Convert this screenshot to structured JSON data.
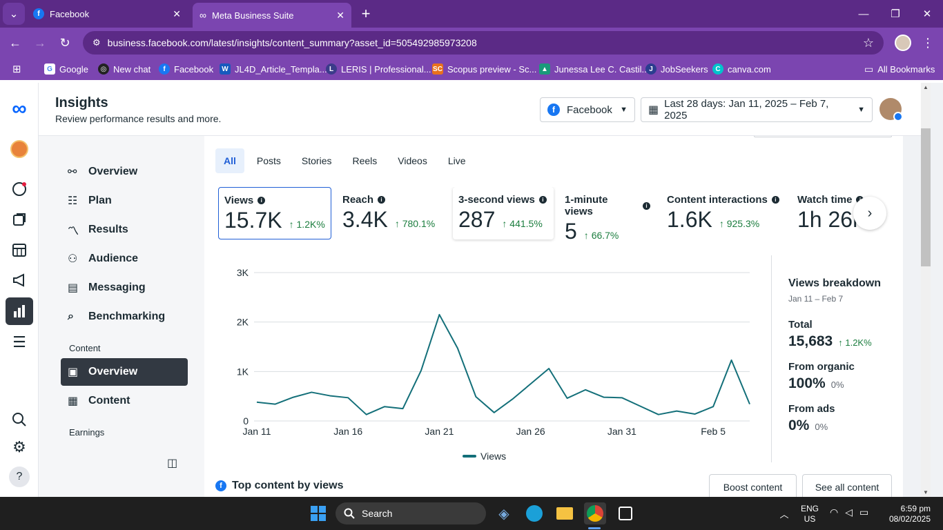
{
  "browser": {
    "tabs": [
      {
        "title": "Facebook",
        "icon": "facebook-icon"
      },
      {
        "title": "Meta Business Suite",
        "icon": "meta-icon"
      }
    ],
    "url": "business.facebook.com/latest/insights/content_summary?asset_id=505492985973208",
    "bookmarks": [
      {
        "label": "Google",
        "icon": "google-icon"
      },
      {
        "label": "New chat",
        "icon": "chatgpt-icon"
      },
      {
        "label": "Facebook",
        "icon": "facebook-icon"
      },
      {
        "label": "JL4D_Article_Templa...",
        "icon": "word-icon"
      },
      {
        "label": "LERIS | Professional...",
        "icon": "leris-icon"
      },
      {
        "label": "Scopus preview - Sc...",
        "icon": "scopus-icon"
      },
      {
        "label": "Junessa Lee C. Castil...",
        "icon": "bookmark-icon"
      },
      {
        "label": "JobSeekers",
        "icon": "jobseekers-icon"
      },
      {
        "label": "canva.com",
        "icon": "canva-icon"
      }
    ],
    "all_bookmarks": "All Bookmarks"
  },
  "header": {
    "title": "Insights",
    "subtitle": "Review performance results and more.",
    "platform": "Facebook",
    "date_range": "Last 28 days: Jan 11, 2025 – Feb 7, 2025"
  },
  "sidebar": {
    "items": [
      {
        "label": "Overview",
        "icon": "overview-icon"
      },
      {
        "label": "Plan",
        "icon": "plan-icon"
      },
      {
        "label": "Results",
        "icon": "results-icon"
      },
      {
        "label": "Audience",
        "icon": "audience-icon"
      },
      {
        "label": "Messaging",
        "icon": "messaging-icon"
      },
      {
        "label": "Benchmarking",
        "icon": "benchmarking-icon"
      }
    ],
    "content_section": "Content",
    "content_items": [
      {
        "label": "Overview",
        "icon": "content-overview-icon"
      },
      {
        "label": "Content",
        "icon": "table-icon"
      }
    ],
    "earnings_section": "Earnings"
  },
  "filter_tabs": [
    "All",
    "Posts",
    "Stories",
    "Reels",
    "Videos",
    "Live"
  ],
  "metrics": [
    {
      "label": "Views",
      "value": "15.7K",
      "change": "1.2K%"
    },
    {
      "label": "Reach",
      "value": "3.4K",
      "change": "780.1%"
    },
    {
      "label": "3-second views",
      "value": "287",
      "change": "441.5%"
    },
    {
      "label": "1-minute views",
      "value": "5",
      "change": "66.7%"
    },
    {
      "label": "Content interactions",
      "value": "1.6K",
      "change": "925.3%"
    },
    {
      "label": "Watch time",
      "value": "1h 26m",
      "change": ""
    }
  ],
  "chart_data": {
    "type": "line",
    "x_ticks": [
      "Jan 11",
      "Jan 16",
      "Jan 21",
      "Jan 26",
      "Jan 31",
      "Feb 5"
    ],
    "y_ticks": [
      "0",
      "1K",
      "2K",
      "3K"
    ],
    "ylim": [
      0,
      3000
    ],
    "series": [
      {
        "name": "Views",
        "color": "#136f79",
        "x": [
          "Jan 11",
          "Jan 12",
          "Jan 13",
          "Jan 14",
          "Jan 15",
          "Jan 16",
          "Jan 17",
          "Jan 18",
          "Jan 19",
          "Jan 20",
          "Jan 21",
          "Jan 22",
          "Jan 23",
          "Jan 24",
          "Jan 25",
          "Jan 26",
          "Jan 27",
          "Jan 28",
          "Jan 29",
          "Jan 30",
          "Jan 31",
          "Feb 1",
          "Feb 2",
          "Feb 3",
          "Feb 4",
          "Feb 5",
          "Feb 6",
          "Feb 7"
        ],
        "values": [
          380,
          340,
          480,
          580,
          510,
          470,
          130,
          290,
          250,
          1020,
          2150,
          1470,
          490,
          170,
          440,
          750,
          1060,
          460,
          630,
          480,
          470,
          300,
          130,
          200,
          140,
          290,
          1230,
          340
        ]
      }
    ]
  },
  "breakdown": {
    "title": "Views breakdown",
    "range": "Jan 11 – Feb 7",
    "rows": [
      {
        "label": "Total",
        "value": "15,683",
        "change": "1.2K%",
        "up": true
      },
      {
        "label": "From organic",
        "value": "100%",
        "change": "0%",
        "up": false
      },
      {
        "label": "From ads",
        "value": "0%",
        "change": "0%",
        "up": false
      }
    ]
  },
  "top_content": {
    "title": "Top content by views",
    "boost": "Boost content",
    "see_all": "See all content"
  },
  "taskbar": {
    "search": "Search",
    "lang": "ENG",
    "region": "US",
    "time": "6:59 pm",
    "date": "08/02/2025"
  }
}
